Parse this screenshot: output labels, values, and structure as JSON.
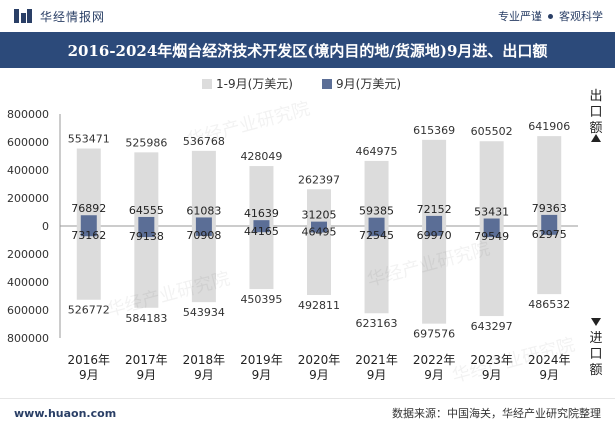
{
  "header": {
    "brand_name": "华经情报网",
    "tags": [
      "专业严谨",
      "客观科学"
    ]
  },
  "title": "2016-2024年烟台经济技术开发区(境内目的地/货源地)9月进、出口额",
  "footer": {
    "site": "www.huaon.com",
    "source": "数据来源：中国海关，华经产业研究院整理"
  },
  "watermark": "华经产业研究院",
  "chart_data": {
    "type": "bar",
    "categories": [
      "2016年\n9月",
      "2017年\n9月",
      "2018年\n9月",
      "2019年\n9月",
      "2020年\n9月",
      "2021年\n9月",
      "2022年\n9月",
      "2023年\n9月",
      "2024年\n9月"
    ],
    "series": [
      {
        "name": "1-9月(万美元)",
        "color": "#dcdcdc",
        "export": [
          553471,
          525986,
          536768,
          428049,
          262397,
          464975,
          615369,
          605502,
          641906
        ],
        "import": [
          526772,
          584183,
          543934,
          450395,
          492811,
          623163,
          697576,
          643297,
          486532
        ]
      },
      {
        "name": "9月(万美元)",
        "color": "#5b6e96",
        "export": [
          76892,
          64555,
          61083,
          41639,
          31205,
          59385,
          72152,
          53431,
          79363
        ],
        "import": [
          73162,
          79138,
          70908,
          44165,
          46495,
          72545,
          69970,
          79549,
          62975
        ]
      }
    ],
    "yticks": [
      "800000",
      "600000",
      "400000",
      "200000",
      "0",
      "200000",
      "400000",
      "600000",
      "800000"
    ],
    "ylim": [
      -800000,
      800000
    ],
    "side_labels": {
      "export": "出口额",
      "import": "进口额"
    },
    "grid": false,
    "legend_position": "top-center"
  }
}
